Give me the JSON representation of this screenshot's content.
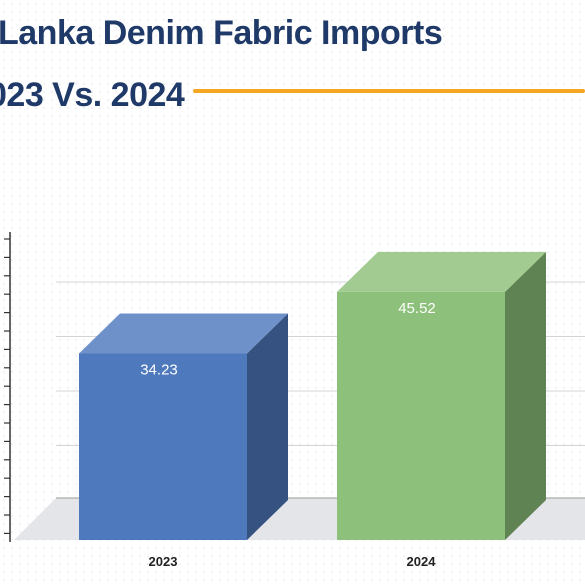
{
  "title_line_1": "Lanka Denim Fabric Imports",
  "title_line_2": "023 Vs. 2024",
  "colors": {
    "title": "#1f3a68",
    "accent_rule": "#f5a623",
    "bar_2023": "#4f79bd",
    "bar_2024": "#8dc07a"
  },
  "chart_data": {
    "type": "bar",
    "categories": [
      "2023",
      "2024"
    ],
    "values": [
      34.23,
      45.52
    ],
    "ylim": [
      0,
      55
    ],
    "grid": true,
    "legend": "none"
  }
}
